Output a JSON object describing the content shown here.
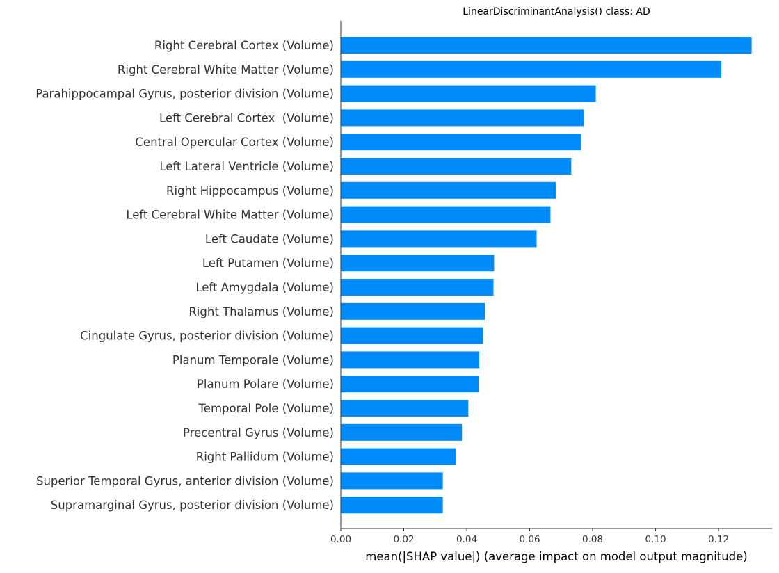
{
  "chart_data": {
    "type": "bar",
    "orientation": "horizontal",
    "title": "LinearDiscriminantAnalysis() class: AD",
    "xlabel": "mean(|SHAP value|) (average impact on model output magnitude)",
    "ylabel": "",
    "xlim": [
      0,
      0.137
    ],
    "xticks": [
      0.0,
      0.02,
      0.04,
      0.06,
      0.08,
      0.1,
      0.12
    ],
    "xtick_labels": [
      "0.00",
      "0.02",
      "0.04",
      "0.06",
      "0.08",
      "0.10",
      "0.12"
    ],
    "grid": false,
    "bar_color": "#008bfb",
    "categories": [
      "Right Cerebral Cortex (Volume)",
      "Right Cerebral White Matter (Volume)",
      "Parahippocampal Gyrus, posterior division (Volume)",
      "Left Cerebral Cortex  (Volume)",
      "Central Opercular Cortex (Volume)",
      "Left Lateral Ventricle (Volume)",
      "Right Hippocampus (Volume)",
      "Left Cerebral White Matter (Volume)",
      "Left Caudate (Volume)",
      "Left Putamen (Volume)",
      "Left Amygdala (Volume)",
      "Right Thalamus (Volume)",
      "Cingulate Gyrus, posterior division (Volume)",
      "Planum Temporale (Volume)",
      "Planum Polare (Volume)",
      "Temporal Pole (Volume)",
      "Precentral Gyrus (Volume)",
      "Right Pallidum (Volume)",
      "Superior Temporal Gyrus, anterior division (Volume)",
      "Supramarginal Gyrus, posterior division (Volume)"
    ],
    "values": [
      0.1305,
      0.1209,
      0.081,
      0.0772,
      0.0764,
      0.0732,
      0.0683,
      0.0666,
      0.0622,
      0.0487,
      0.0485,
      0.0458,
      0.0452,
      0.044,
      0.0438,
      0.0405,
      0.0385,
      0.0366,
      0.0324,
      0.0324
    ]
  }
}
